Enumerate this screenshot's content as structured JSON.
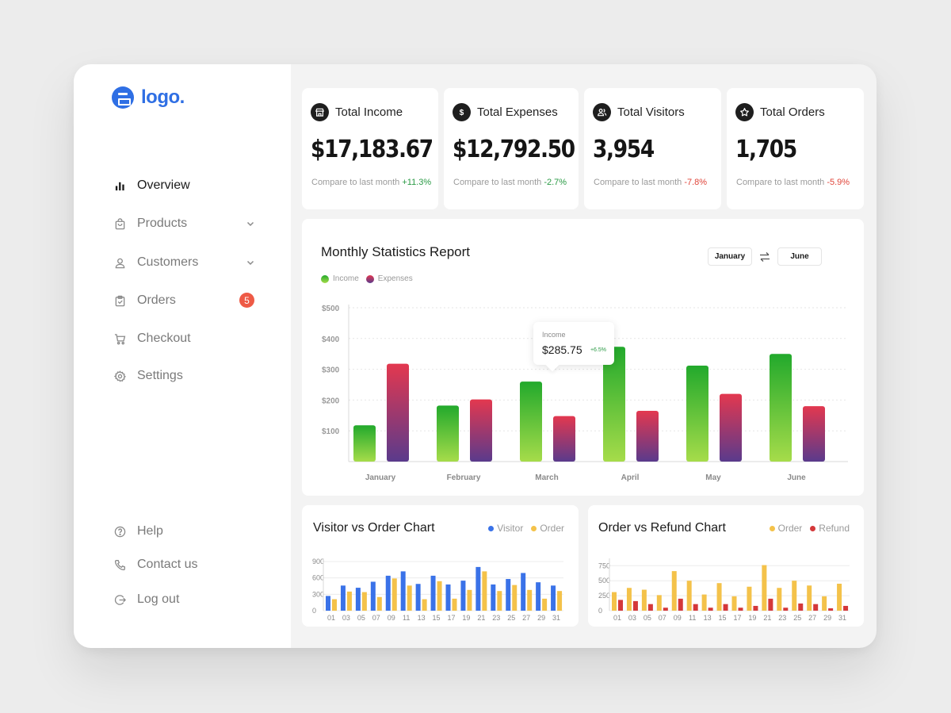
{
  "brand": {
    "logo_text": "logo."
  },
  "sidebar": {
    "nav": [
      {
        "label": "Overview"
      },
      {
        "label": "Products"
      },
      {
        "label": "Customers"
      },
      {
        "label": "Orders",
        "badge": "5"
      },
      {
        "label": "Checkout"
      },
      {
        "label": "Settings"
      }
    ],
    "bottom": [
      {
        "label": "Help"
      },
      {
        "label": "Contact us"
      },
      {
        "label": "Log out"
      }
    ]
  },
  "stats": [
    {
      "title": "Total Income",
      "value": "$17,183.67",
      "compare": "Compare to last month",
      "change": "+11.3%"
    },
    {
      "title": "Total Expenses",
      "value": "$12,792.50",
      "compare": "Compare to last month",
      "change": "-2.7%"
    },
    {
      "title": "Total Visitors",
      "value": "3,954",
      "compare": "Compare to last month",
      "change": "-7.8%"
    },
    {
      "title": "Total Orders",
      "value": "1,705",
      "compare": "Compare to last month",
      "change": "-5.9%"
    }
  ],
  "monthly": {
    "title": "Monthly Statistics Report",
    "from_month": "January",
    "to_month": "June",
    "tooltip": {
      "label": "Income",
      "value": "$285.75",
      "change": "+6.5%"
    }
  },
  "visitor_chart": {
    "title": "Visitor vs Order Chart"
  },
  "refund_chart": {
    "title": "Order vs Refund Chart"
  },
  "colors": {
    "accent": "#2f6fe4",
    "income_top": "#22a92c",
    "income_bottom": "#a6dc4a",
    "expense_top": "#e3384f",
    "expense_bottom": "#5a3a8c",
    "visitor": "#3a72e8",
    "order": "#f4c24a",
    "refund": "#d4383a",
    "positive": "#2a9a45",
    "negative": "#e0453a"
  },
  "chart_data": [
    {
      "type": "bar",
      "categories": [
        "January",
        "February",
        "March",
        "April",
        "May",
        "June"
      ],
      "series": [
        {
          "name": "Income",
          "values": [
            118,
            182,
            260,
            373,
            312,
            350
          ]
        },
        {
          "name": "Expenses",
          "values": [
            318,
            202,
            148,
            165,
            220,
            180
          ]
        }
      ],
      "yticks": [
        "$100",
        "$200",
        "$300",
        "$400",
        "$500"
      ],
      "ylim": [
        0,
        500
      ],
      "legend": "top-left",
      "grid": true
    },
    {
      "type": "bar",
      "categories": [
        "01",
        "03",
        "05",
        "07",
        "09",
        "11",
        "13",
        "15",
        "17",
        "19",
        "21",
        "23",
        "25",
        "27",
        "29",
        "31"
      ],
      "series": [
        {
          "name": "Visitor",
          "values": [
            270,
            460,
            420,
            530,
            640,
            720,
            490,
            640,
            480,
            550,
            800,
            480,
            580,
            690,
            520,
            460
          ]
        },
        {
          "name": "Order",
          "values": [
            210,
            350,
            340,
            250,
            590,
            460,
            210,
            540,
            220,
            380,
            720,
            360,
            470,
            380,
            220,
            360
          ]
        }
      ],
      "yticks": [
        "0",
        "300",
        "600",
        "900"
      ],
      "ylim": [
        0,
        900
      ],
      "legend": "top-right",
      "grid": true
    },
    {
      "type": "bar",
      "categories": [
        "01",
        "03",
        "05",
        "07",
        "09",
        "11",
        "13",
        "15",
        "17",
        "19",
        "21",
        "23",
        "25",
        "27",
        "29",
        "31"
      ],
      "series": [
        {
          "name": "Order",
          "values": [
            310,
            380,
            350,
            260,
            660,
            500,
            270,
            460,
            240,
            400,
            760,
            380,
            500,
            420,
            240,
            450
          ]
        },
        {
          "name": "Refund",
          "values": [
            180,
            160,
            110,
            50,
            200,
            110,
            50,
            110,
            50,
            80,
            200,
            50,
            120,
            110,
            40,
            80
          ]
        }
      ],
      "yticks": [
        "0",
        "250",
        "500",
        "750"
      ],
      "ylim": [
        0,
        820
      ],
      "legend": "top-right",
      "grid": true
    }
  ]
}
